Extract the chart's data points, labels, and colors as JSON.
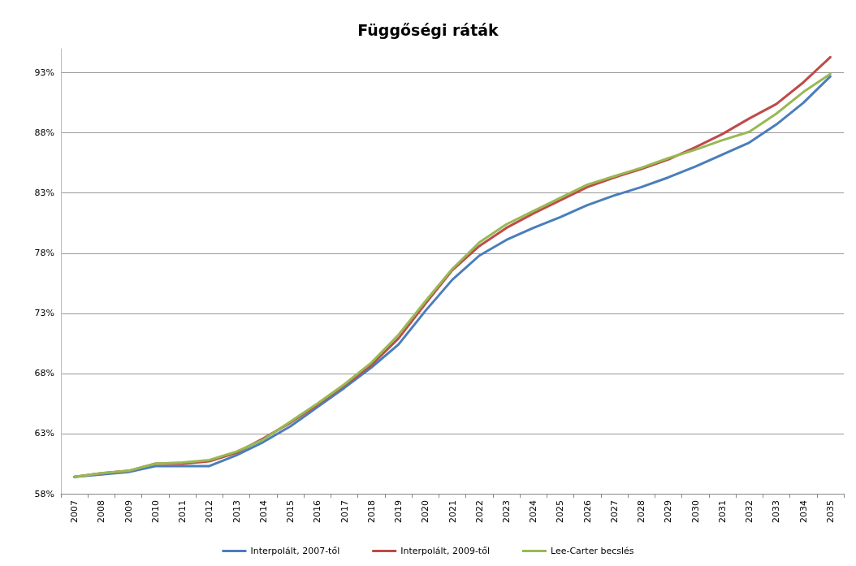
{
  "chart_data": {
    "type": "line",
    "title": "Függőségi ráták",
    "categories": [
      "2007",
      "2008",
      "2009",
      "2010",
      "2011",
      "2012",
      "2013",
      "2014",
      "2015",
      "2016",
      "2017",
      "2018",
      "2019",
      "2020",
      "2021",
      "2022",
      "2023",
      "2024",
      "2025",
      "2026",
      "2027",
      "2028",
      "2029",
      "2030",
      "2031",
      "2032",
      "2033",
      "2034",
      "2035"
    ],
    "series": [
      {
        "name": "Interpolált, 2007-től",
        "color": "#4a7ebb",
        "values": [
          59.4,
          59.6,
          59.8,
          60.3,
          60.3,
          60.3,
          61.2,
          62.3,
          63.6,
          65.2,
          66.8,
          68.5,
          70.4,
          73.2,
          75.8,
          77.8,
          79.1,
          80.1,
          81.0,
          82.0,
          82.8,
          83.5,
          84.3,
          85.2,
          86.2,
          87.2,
          88.7,
          90.5,
          92.7
        ]
      },
      {
        "name": "Interpolált, 2009-től",
        "color": "#be4b48",
        "values": [
          59.4,
          59.7,
          59.9,
          60.5,
          60.5,
          60.7,
          61.4,
          62.6,
          63.9,
          65.4,
          67.0,
          68.7,
          70.9,
          73.8,
          76.6,
          78.6,
          80.1,
          81.3,
          82.4,
          83.5,
          84.3,
          85.0,
          85.8,
          86.8,
          87.9,
          89.2,
          90.4,
          92.2,
          94.3
        ]
      },
      {
        "name": "Lee-Carter becslés",
        "color": "#98b954",
        "values": [
          59.4,
          59.7,
          59.9,
          60.5,
          60.6,
          60.8,
          61.5,
          62.5,
          64.0,
          65.5,
          67.1,
          68.9,
          71.2,
          74.0,
          76.7,
          78.9,
          80.4,
          81.5,
          82.6,
          83.7,
          84.4,
          85.1,
          85.9,
          86.6,
          87.4,
          88.1,
          89.6,
          91.4,
          92.9
        ]
      }
    ],
    "ylim": [
      58,
      95
    ],
    "yticks": [
      {
        "value": 58,
        "label": "58%"
      },
      {
        "value": 63,
        "label": "63%"
      },
      {
        "value": 68,
        "label": "68%"
      },
      {
        "value": 73,
        "label": "73%"
      },
      {
        "value": 78,
        "label": "78%"
      },
      {
        "value": 83,
        "label": "83%"
      },
      {
        "value": 88,
        "label": "88%"
      },
      {
        "value": 93,
        "label": "93%"
      }
    ],
    "grid": "y",
    "legend": "bottom",
    "marker": "none",
    "line_style": "solid"
  }
}
